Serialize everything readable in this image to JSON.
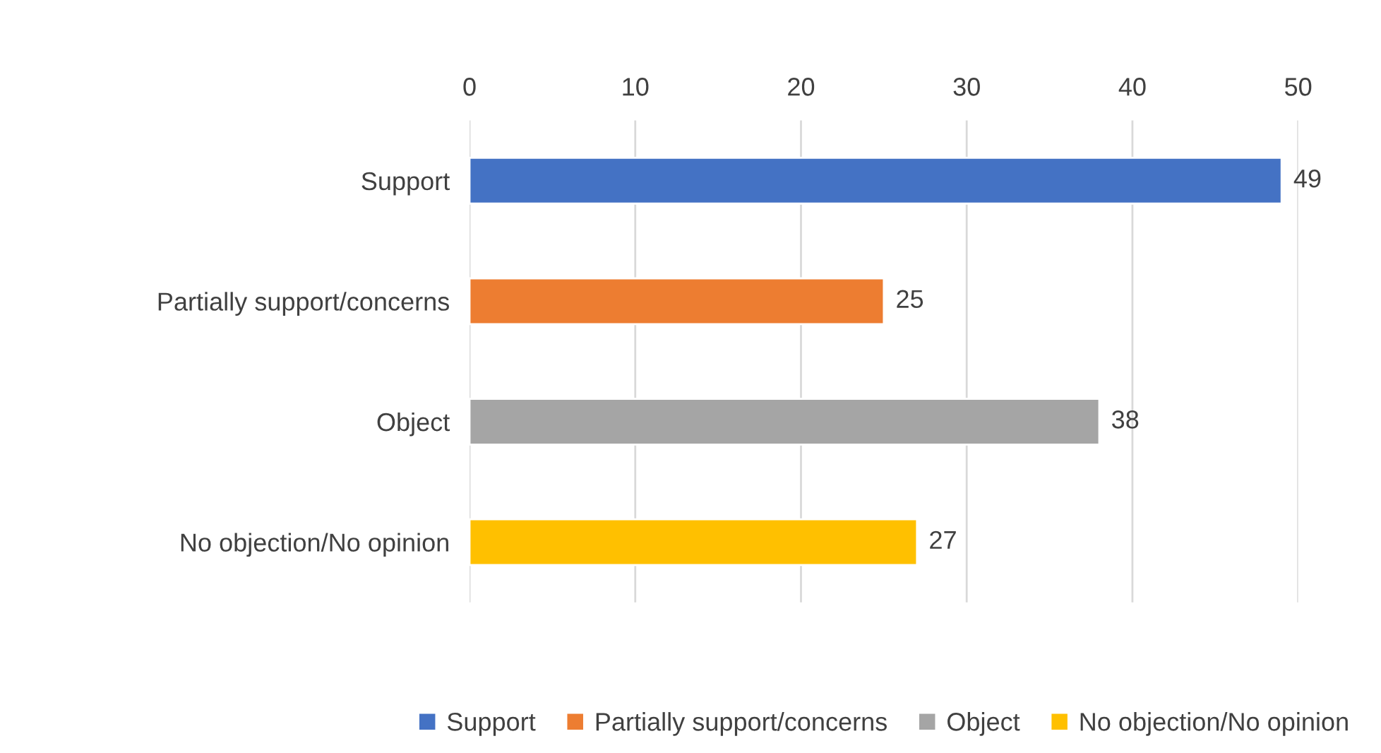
{
  "chart_data": {
    "type": "bar",
    "orientation": "horizontal",
    "categories": [
      "Support",
      "Partially support/concerns",
      "Object",
      "No objection/No opinion"
    ],
    "series": [
      {
        "name": "Support",
        "color": "#4472c4",
        "values": [
          49,
          null,
          null,
          null
        ]
      },
      {
        "name": "Partially support/concerns",
        "color": "#ed7d31",
        "values": [
          null,
          25,
          null,
          null
        ]
      },
      {
        "name": "Object",
        "color": "#a5a5a5",
        "values": [
          null,
          null,
          38,
          null
        ]
      },
      {
        "name": "No objection/No opinion",
        "color": "#ffc000",
        "values": [
          null,
          null,
          null,
          27
        ]
      }
    ],
    "xlim": [
      0,
      50
    ],
    "xticks": [
      0,
      10,
      20,
      30,
      40,
      50
    ],
    "grid": "x",
    "data_labels": true,
    "legend": "bottom"
  }
}
